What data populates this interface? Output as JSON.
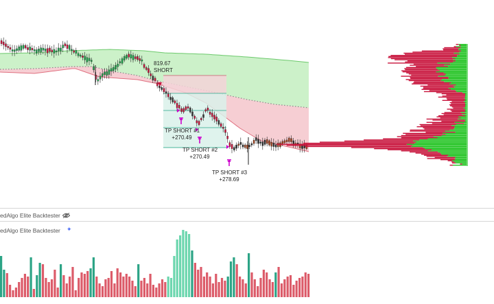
{
  "indicator_top": {
    "name": "edAlgo Elite Backtester",
    "eye_icon": "eye-icon"
  },
  "indicator_bottom": {
    "name": "edAlgo Elite Backtester",
    "settings_icon": "sparkle-icon"
  },
  "signals": {
    "entry_price": "819.67",
    "entry_label": "SHORT",
    "tp1_label": "TP SHORT #1",
    "tp1_value": "+270.49",
    "tp2_label": "TP SHORT #2",
    "tp2_value": "+270.49",
    "tp3_label": "TP SHORT #3",
    "tp3_value": "+278.69"
  },
  "colors": {
    "bull": "#1e9e4a",
    "bear": "#c8143c",
    "band_upper_fill": "#c9f0c6",
    "band_lower_fill": "#f6cbd1",
    "marker": "#cc00cc",
    "tp_zone": "#d9f1ea",
    "sl_zone": "#f3d3d8",
    "vol_teal_dark": "#1a9c7c",
    "vol_teal_light": "#5fd3a7",
    "vol_red": "#d94d5c"
  }
}
